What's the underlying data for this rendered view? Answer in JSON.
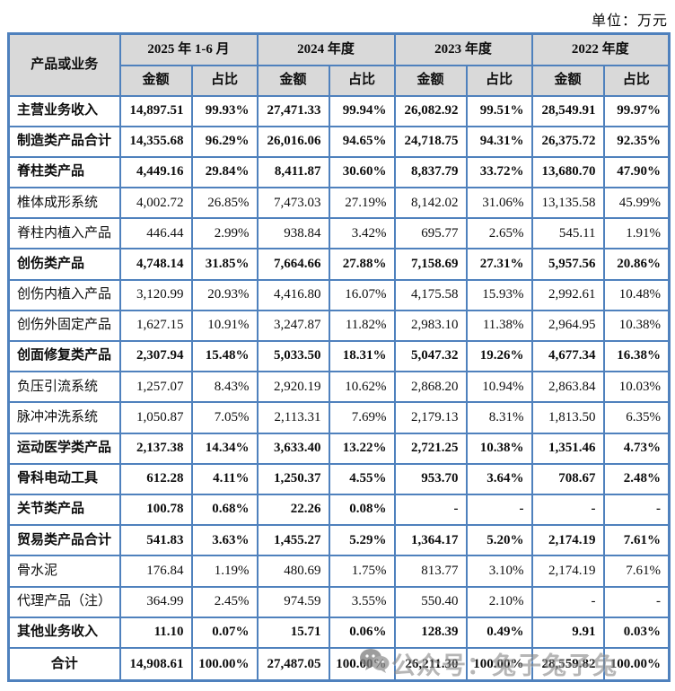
{
  "unit_label": "单位：万元",
  "colors": {
    "border_blue": "#4f81bd",
    "header_background": "#d9d9d9",
    "watermark_gray": "#8b8b8b"
  },
  "table": {
    "corner_header": "产品或业务",
    "period_headers": [
      "2025 年 1-6 月",
      "2024 年度",
      "2023 年度",
      "2022 年度"
    ],
    "sub_headers": [
      "金额",
      "占比"
    ],
    "rows": [
      {
        "label": "主营业务收入",
        "bold": true,
        "values": [
          "14,897.51",
          "99.93%",
          "27,471.33",
          "99.94%",
          "26,082.92",
          "99.51%",
          "28,549.91",
          "99.97%"
        ]
      },
      {
        "label": "制造类产品合计",
        "bold": true,
        "values": [
          "14,355.68",
          "96.29%",
          "26,016.06",
          "94.65%",
          "24,718.75",
          "94.31%",
          "26,375.72",
          "92.35%"
        ]
      },
      {
        "label": "脊柱类产品",
        "bold": true,
        "values": [
          "4,449.16",
          "29.84%",
          "8,411.87",
          "30.60%",
          "8,837.79",
          "33.72%",
          "13,680.70",
          "47.90%"
        ]
      },
      {
        "label": "椎体成形系统",
        "bold": false,
        "values": [
          "4,002.72",
          "26.85%",
          "7,473.03",
          "27.19%",
          "8,142.02",
          "31.06%",
          "13,135.58",
          "45.99%"
        ]
      },
      {
        "label": "脊柱内植入产品",
        "bold": false,
        "values": [
          "446.44",
          "2.99%",
          "938.84",
          "3.42%",
          "695.77",
          "2.65%",
          "545.11",
          "1.91%"
        ]
      },
      {
        "label": "创伤类产品",
        "bold": true,
        "values": [
          "4,748.14",
          "31.85%",
          "7,664.66",
          "27.88%",
          "7,158.69",
          "27.31%",
          "5,957.56",
          "20.86%"
        ]
      },
      {
        "label": "创伤内植入产品",
        "bold": false,
        "values": [
          "3,120.99",
          "20.93%",
          "4,416.80",
          "16.07%",
          "4,175.58",
          "15.93%",
          "2,992.61",
          "10.48%"
        ]
      },
      {
        "label": "创伤外固定产品",
        "bold": false,
        "values": [
          "1,627.15",
          "10.91%",
          "3,247.87",
          "11.82%",
          "2,983.10",
          "11.38%",
          "2,964.95",
          "10.38%"
        ]
      },
      {
        "label": "创面修复类产品",
        "bold": true,
        "values": [
          "2,307.94",
          "15.48%",
          "5,033.50",
          "18.31%",
          "5,047.32",
          "19.26%",
          "4,677.34",
          "16.38%"
        ]
      },
      {
        "label": "负压引流系统",
        "bold": false,
        "values": [
          "1,257.07",
          "8.43%",
          "2,920.19",
          "10.62%",
          "2,868.20",
          "10.94%",
          "2,863.84",
          "10.03%"
        ]
      },
      {
        "label": "脉冲冲洗系统",
        "bold": false,
        "values": [
          "1,050.87",
          "7.05%",
          "2,113.31",
          "7.69%",
          "2,179.13",
          "8.31%",
          "1,813.50",
          "6.35%"
        ]
      },
      {
        "label": "运动医学类产品",
        "bold": true,
        "values": [
          "2,137.38",
          "14.34%",
          "3,633.40",
          "13.22%",
          "2,721.25",
          "10.38%",
          "1,351.46",
          "4.73%"
        ]
      },
      {
        "label": "骨科电动工具",
        "bold": true,
        "values": [
          "612.28",
          "4.11%",
          "1,250.37",
          "4.55%",
          "953.70",
          "3.64%",
          "708.67",
          "2.48%"
        ]
      },
      {
        "label": "关节类产品",
        "bold": true,
        "values": [
          "100.78",
          "0.68%",
          "22.26",
          "0.08%",
          "-",
          "-",
          "-",
          "-"
        ]
      },
      {
        "label": "贸易类产品合计",
        "bold": true,
        "values": [
          "541.83",
          "3.63%",
          "1,455.27",
          "5.29%",
          "1,364.17",
          "5.20%",
          "2,174.19",
          "7.61%"
        ]
      },
      {
        "label": "骨水泥",
        "bold": false,
        "values": [
          "176.84",
          "1.19%",
          "480.69",
          "1.75%",
          "813.77",
          "3.10%",
          "2,174.19",
          "7.61%"
        ]
      },
      {
        "label": "代理产品（注）",
        "bold": false,
        "values": [
          "364.99",
          "2.45%",
          "974.59",
          "3.55%",
          "550.40",
          "2.10%",
          "-",
          "-"
        ]
      },
      {
        "label": "其他业务收入",
        "bold": true,
        "values": [
          "11.10",
          "0.07%",
          "15.71",
          "0.06%",
          "128.39",
          "0.49%",
          "9.91",
          "0.03%"
        ]
      },
      {
        "label": "合计",
        "bold": true,
        "align": "center",
        "total": true,
        "values": [
          "14,908.61",
          "100.00%",
          "27,487.05",
          "100.00%",
          "26,211.30",
          "100.00%",
          "28,559.82",
          "100.00%"
        ]
      }
    ]
  },
  "watermark": {
    "icon": "wechat-icon",
    "text": "公众号：兔子兔子兔"
  }
}
